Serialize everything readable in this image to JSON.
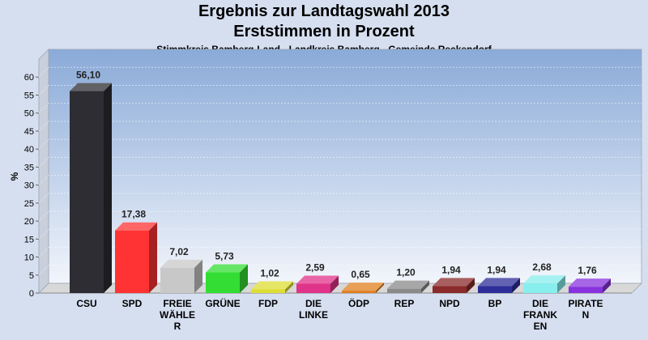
{
  "chart_data": {
    "type": "bar",
    "title": "Ergebnis zur Landtagswahl 2013",
    "subtitle": "Erststimmen in Prozent",
    "subsubtitle": "Stimmkreis Bamberg-Land - Landkreis Bamberg - Gemeinde Reckendorf",
    "xlabel": "",
    "ylabel": "%",
    "ylim": [
      0,
      65
    ],
    "yticks": [
      0,
      5,
      10,
      15,
      20,
      25,
      30,
      35,
      40,
      45,
      50,
      55,
      60
    ],
    "grid": true,
    "categories": [
      [
        "CSU"
      ],
      [
        "SPD"
      ],
      [
        "FREIE",
        "WÄHLE",
        "R"
      ],
      [
        "GRÜNE"
      ],
      [
        "FDP"
      ],
      [
        "DIE",
        "LINKE"
      ],
      [
        "ÖDP"
      ],
      [
        "REP"
      ],
      [
        "NPD"
      ],
      [
        "BP"
      ],
      [
        "DIE",
        "FRANK",
        "EN"
      ],
      [
        "PIRATE",
        "N"
      ]
    ],
    "values": [
      56.1,
      17.38,
      7.02,
      5.73,
      1.02,
      2.59,
      0.65,
      1.2,
      1.94,
      1.94,
      2.68,
      1.76
    ],
    "value_labels": [
      "56,10",
      "17,38",
      "7,02",
      "5,73",
      "1,02",
      "2,59",
      "0,65",
      "1,20",
      "1,94",
      "1,94",
      "2,68",
      "1,76"
    ],
    "colors": [
      "#2d2d33",
      "#ff3333",
      "#c8c8c8",
      "#33dd33",
      "#dddd33",
      "#e0338a",
      "#e07f1f",
      "#8a8a8a",
      "#8b2a2a",
      "#2e2e9a",
      "#88eeee",
      "#8833dd"
    ]
  }
}
